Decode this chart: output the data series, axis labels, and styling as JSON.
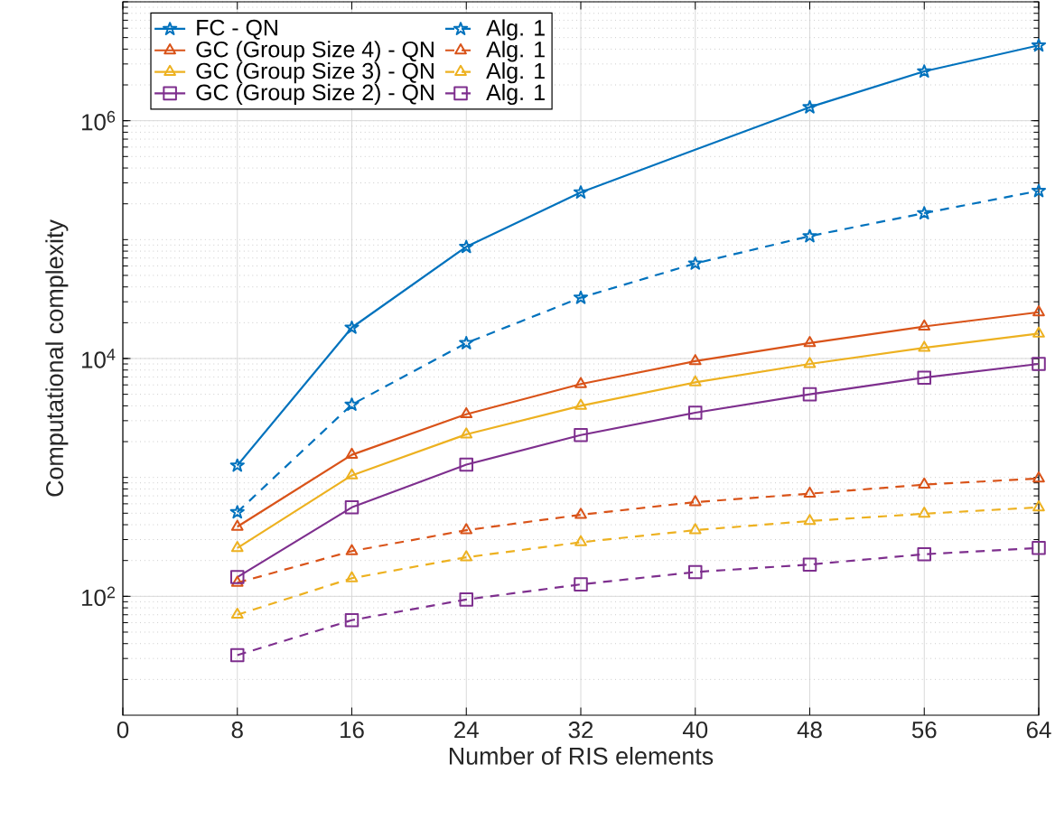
{
  "chart_data": {
    "type": "line",
    "xlabel": "Number of RIS elements",
    "ylabel": "Computational complexity",
    "x": [
      8,
      16,
      24,
      32,
      40,
      48,
      56,
      64
    ],
    "xlim": [
      0,
      64
    ],
    "xticks": [
      0,
      8,
      16,
      24,
      32,
      40,
      48,
      56,
      64
    ],
    "ylim": [
      10,
      10000000
    ],
    "yticks": [
      {
        "value": 100,
        "label": "10$^{2}$"
      },
      {
        "value": 10000,
        "label": "10$^{4}$"
      },
      {
        "value": 1000000,
        "label": "10$^{6}$"
      }
    ],
    "log": "y",
    "grid": true,
    "legend": "top left",
    "series": [
      {
        "name": "FC - QN",
        "color": "#0072bd",
        "marker": "star",
        "line_style": "solid",
        "values": [
          1260,
          18200,
          87000,
          250000,
          null,
          1300000,
          2600000,
          4300000
        ]
      },
      {
        "name": "Alg. 1",
        "color": "#0072bd",
        "marker": "star",
        "line_style": "dashed",
        "values": [
          510,
          4100,
          13500,
          32500,
          63000,
          107000,
          167000,
          257000
        ]
      },
      {
        "name": "GC (Group Size 4) - QN",
        "color": "#d95319",
        "marker": "triangle",
        "line_style": "solid",
        "values": [
          385,
          1550,
          3400,
          6100,
          9500,
          13500,
          18600,
          24500
        ]
      },
      {
        "name": "Alg. 1",
        "color": "#d95319",
        "marker": "triangle",
        "line_style": "dashed",
        "values": [
          130,
          240,
          360,
          485,
          620,
          730,
          870,
          980
        ]
      },
      {
        "name": "GC (Group Size 3) - QN",
        "color": "#edb120",
        "marker": "triangle",
        "line_style": "solid",
        "values": [
          255,
          1040,
          2300,
          4000,
          6300,
          9000,
          12300,
          16200
        ]
      },
      {
        "name": "Alg. 1",
        "color": "#edb120",
        "marker": "triangle",
        "line_style": "dashed",
        "values": [
          70,
          142,
          213,
          285,
          360,
          430,
          495,
          560
        ]
      },
      {
        "name": "GC (Group Size 2) - QN",
        "color": "#7e2f8e",
        "marker": "square",
        "line_style": "solid",
        "values": [
          145,
          560,
          1280,
          2270,
          3500,
          5000,
          6900,
          9000
        ]
      },
      {
        "name": "Alg. 1",
        "color": "#7e2f8e",
        "marker": "square",
        "line_style": "dashed",
        "values": [
          32,
          63,
          94,
          126,
          160,
          185,
          226,
          255
        ]
      }
    ]
  }
}
